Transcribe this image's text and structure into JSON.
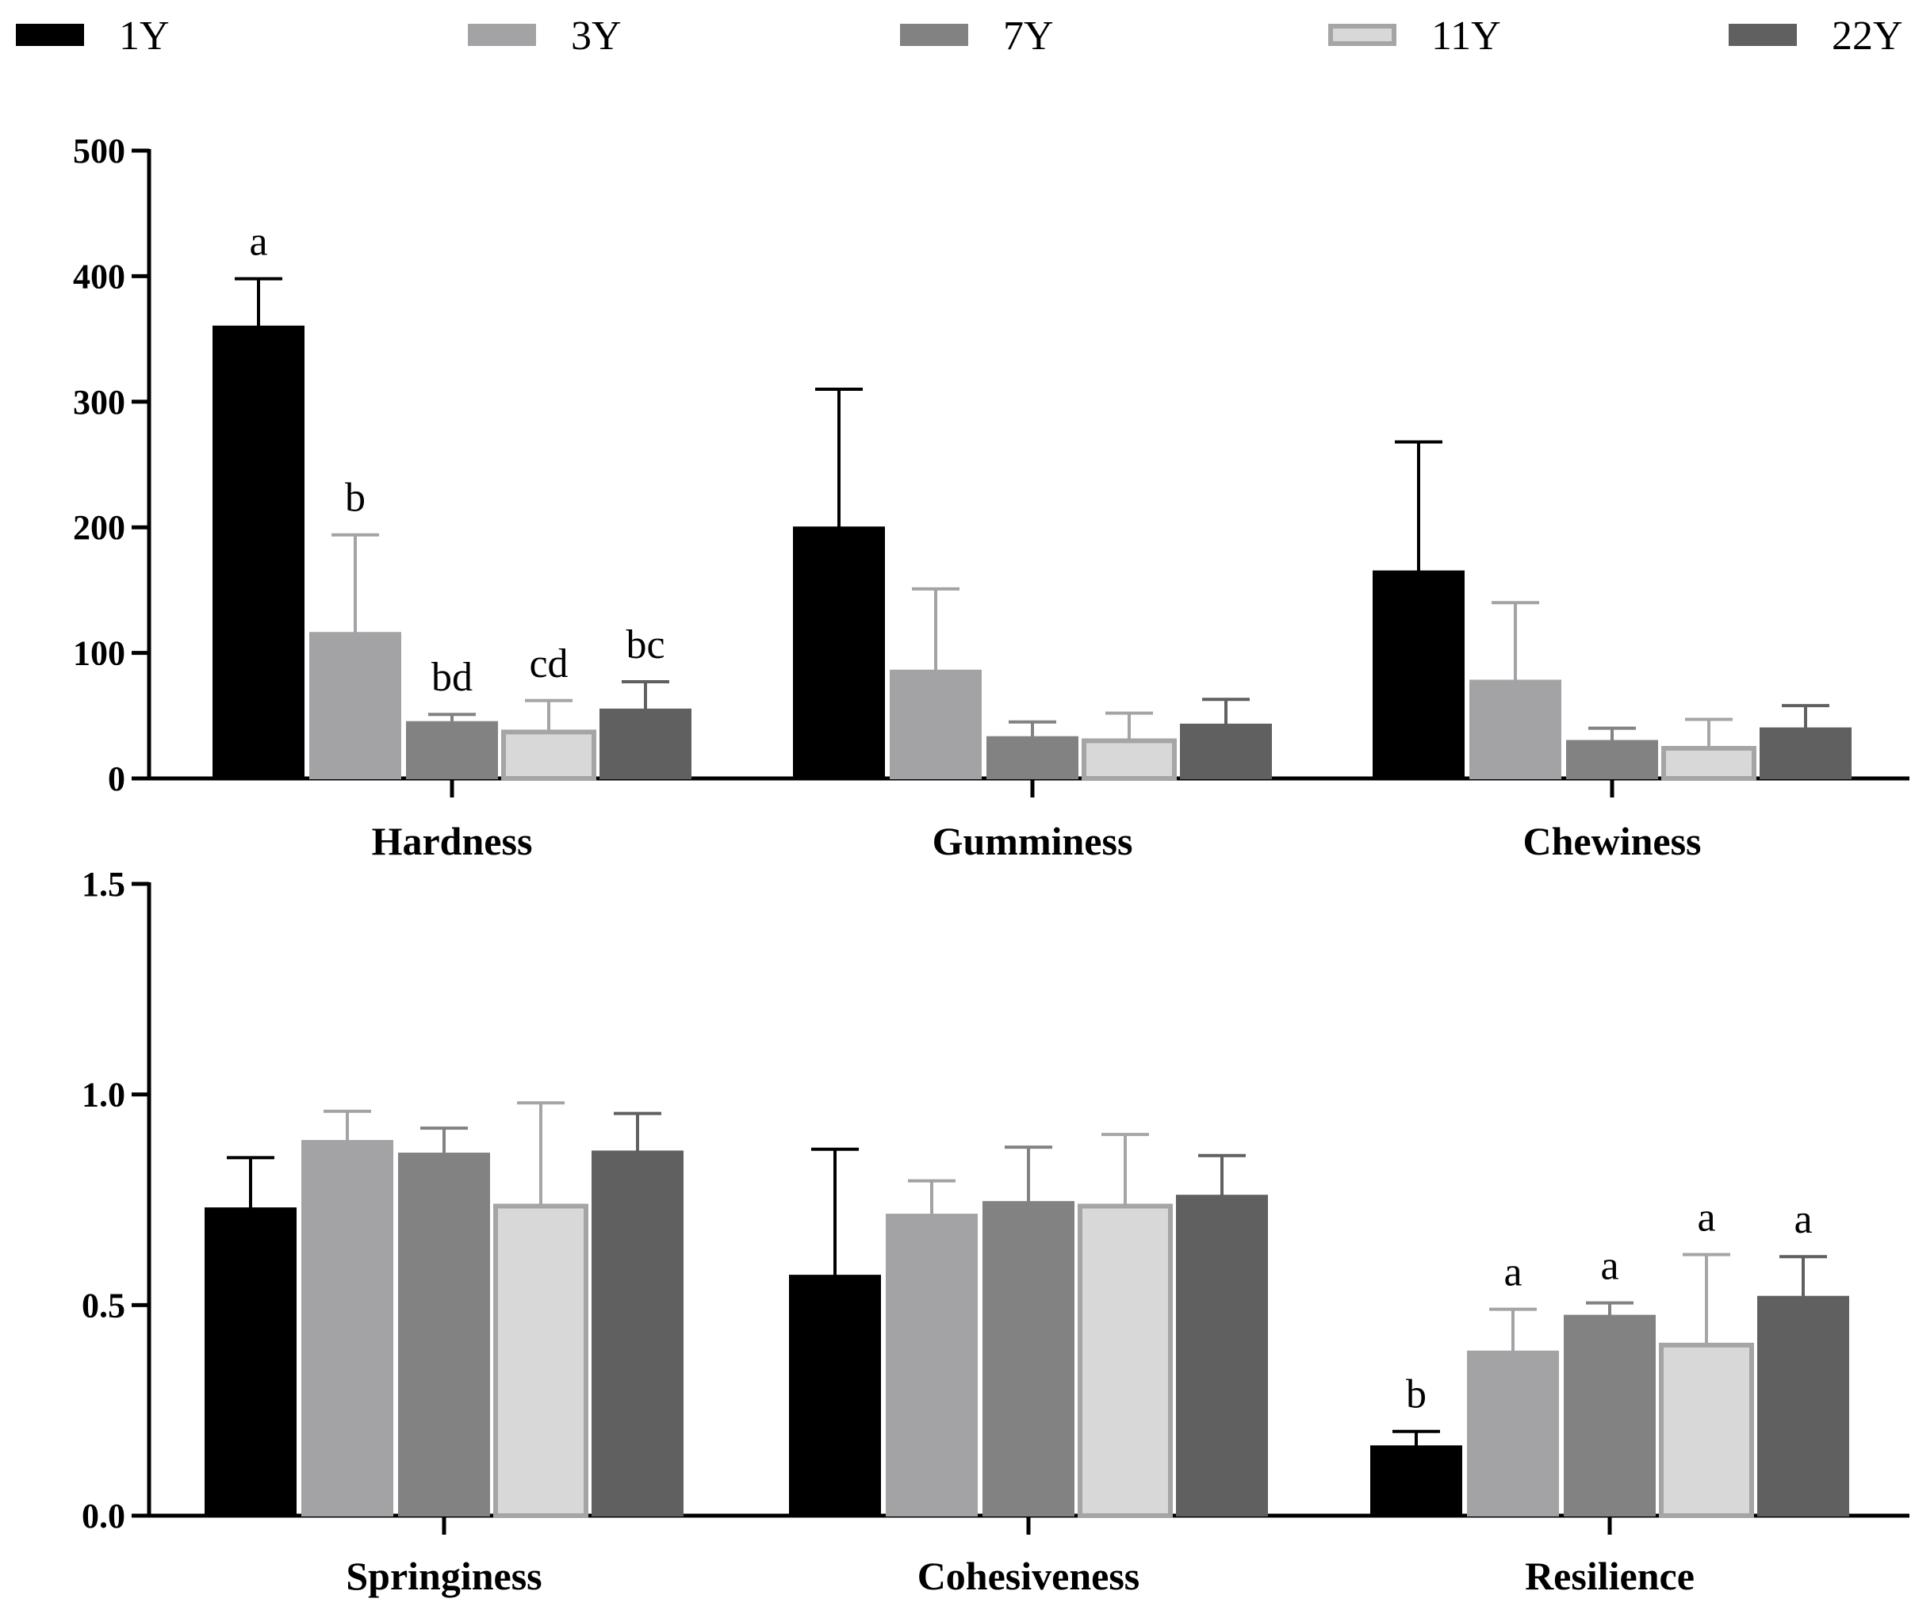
{
  "legend": [
    {
      "label": "1Y",
      "fill": "#000000",
      "stroke": "#000000"
    },
    {
      "label": "3Y",
      "fill": "#a3a2a5",
      "stroke": "#a3a2a5"
    },
    {
      "label": "7Y",
      "fill": "#828282",
      "stroke": "#828282"
    },
    {
      "label": "11Y",
      "fill": "#d8d8d8",
      "stroke": "#a5a5a5"
    },
    {
      "label": "22Y",
      "fill": "#606060",
      "stroke": "#606060"
    }
  ],
  "chart_data": [
    {
      "type": "bar",
      "title": "",
      "xlabel": "",
      "ylabel": "",
      "ylim": [
        0,
        500
      ],
      "yticks": [
        "0",
        "100",
        "200",
        "300",
        "400",
        "500"
      ],
      "ytick_values": [
        0,
        100,
        200,
        300,
        400,
        500
      ],
      "categories": [
        "Hardness",
        "Gumminess",
        "Chewiness"
      ],
      "series": [
        {
          "name": "1Y",
          "values": [
            360,
            200,
            165
          ],
          "errors": [
            38,
            110,
            103
          ],
          "labels": [
            "a",
            "",
            ""
          ]
        },
        {
          "name": "3Y",
          "values": [
            116,
            86,
            78
          ],
          "errors": [
            78,
            65,
            62
          ],
          "labels": [
            "b",
            "",
            ""
          ]
        },
        {
          "name": "7Y",
          "values": [
            45,
            33,
            30
          ],
          "errors": [
            6,
            12,
            10
          ],
          "labels": [
            "bd",
            "",
            ""
          ]
        },
        {
          "name": "11Y",
          "values": [
            37,
            30,
            24
          ],
          "errors": [
            25,
            22,
            23
          ],
          "labels": [
            "cd",
            "",
            ""
          ]
        },
        {
          "name": "22Y",
          "values": [
            55,
            43,
            40
          ],
          "errors": [
            22,
            20,
            18
          ],
          "labels": [
            "bc",
            "",
            ""
          ]
        }
      ]
    },
    {
      "type": "bar",
      "title": "",
      "xlabel": "",
      "ylabel": "",
      "ylim": [
        0,
        1.5
      ],
      "yticks": [
        "0.0",
        "0.5",
        "1.0",
        "1.5"
      ],
      "ytick_values": [
        0,
        0.5,
        1.0,
        1.5
      ],
      "categories": [
        "Springiness",
        "Cohesiveness",
        "Resilience"
      ],
      "series": [
        {
          "name": "1Y",
          "values": [
            0.73,
            0.57,
            0.165
          ],
          "errors": [
            0.12,
            0.3,
            0.035
          ],
          "labels": [
            "",
            "",
            "b"
          ]
        },
        {
          "name": "3Y",
          "values": [
            0.89,
            0.715,
            0.39
          ],
          "errors": [
            0.07,
            0.08,
            0.1
          ],
          "labels": [
            "",
            "",
            "a"
          ]
        },
        {
          "name": "7Y",
          "values": [
            0.86,
            0.745,
            0.475
          ],
          "errors": [
            0.06,
            0.13,
            0.03
          ],
          "labels": [
            "",
            "",
            "a"
          ]
        },
        {
          "name": "11Y",
          "values": [
            0.735,
            0.735,
            0.405
          ],
          "errors": [
            0.245,
            0.17,
            0.215
          ],
          "labels": [
            "",
            "",
            "a"
          ]
        },
        {
          "name": "22Y",
          "values": [
            0.865,
            0.76,
            0.52
          ],
          "errors": [
            0.09,
            0.095,
            0.095
          ],
          "labels": [
            "",
            "",
            "a"
          ]
        }
      ]
    }
  ]
}
